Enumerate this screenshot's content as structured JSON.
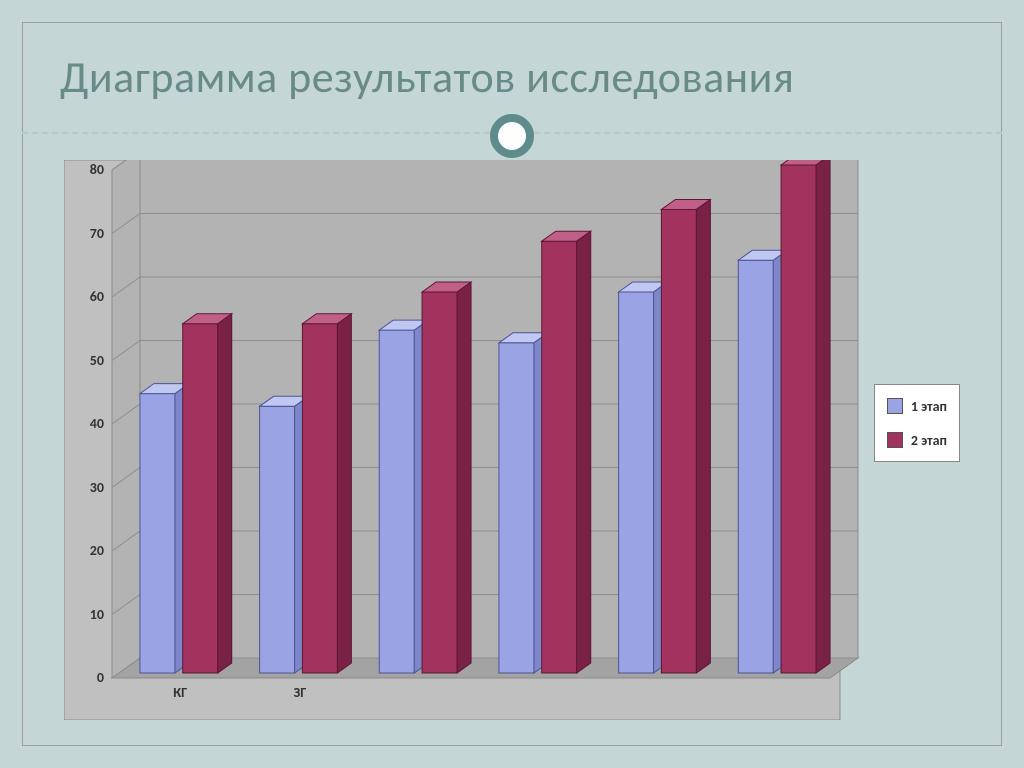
{
  "slide": {
    "title": "Диаграмма результатов исследования",
    "background_color": "#c5d6d6",
    "frame_border_color": "#9e9e9e",
    "title_color": "#688b8a",
    "title_fontsize_pt": 33,
    "divider_color": "#b8c9c9",
    "ring_border_color": "#5e8b8b",
    "ring_fill_color": "#fdfefe"
  },
  "chart": {
    "type": "bar-3d-clustered",
    "plot_background_color": "#c0c0c0",
    "panel_background_color": "#c0c0c0",
    "wall_color": "#b3b3b3",
    "floor_color": "#a3a3a3",
    "gridline_color": "#8d8d8d",
    "border_color": "#8a8a8a",
    "y_axis": {
      "min": 0,
      "max": 80,
      "tick_step": 10,
      "ticks": [
        0,
        10,
        20,
        30,
        40,
        50,
        60,
        70,
        80
      ],
      "label_fontsize_pt": 11,
      "label_fontweight": "bold",
      "label_color": "#333333"
    },
    "categories": [
      "КГ",
      "ЗГ",
      "",
      "",
      "",
      ""
    ],
    "category_label_fontsize_pt": 11,
    "category_label_fontweight": "bold",
    "series": [
      {
        "name": "1 этап",
        "color_front": "#9aa3e3",
        "color_top": "#c0c7f1",
        "color_side": "#7d87c9",
        "stroke": "#4b5596",
        "values": [
          44,
          42,
          54,
          52,
          60,
          65
        ]
      },
      {
        "name": "2 этап",
        "color_front": "#a2335e",
        "color_top": "#c06088",
        "color_side": "#7a2146",
        "stroke": "#5d1735",
        "values": [
          55,
          55,
          60,
          68,
          73,
          80
        ]
      }
    ],
    "legend": {
      "background_color": "#ffffff",
      "border_color": "#888888",
      "font_size_pt": 11,
      "swatch_border_color": "#555555",
      "position": "right"
    },
    "layout": {
      "group_gap_ratio": 0.35,
      "bar_gap_ratio": 0.1,
      "depth_dx": 14,
      "depth_dy": 10,
      "floor_depth_dx": 28,
      "floor_depth_dy": 20
    }
  }
}
